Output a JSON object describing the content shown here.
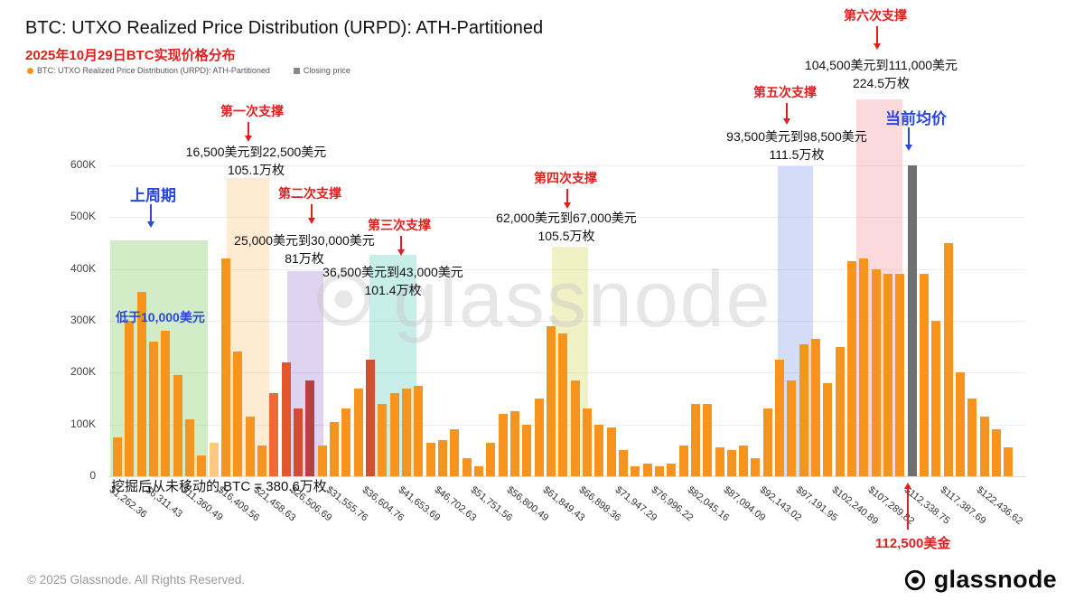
{
  "header": {
    "title": "BTC: UTXO Realized Price Distribution (URPD): ATH-Partitioned",
    "subtitle": "2025年10月29日BTC实现价格分布",
    "legend": {
      "series": "BTC: UTXO Realized Price Distribution (URPD): ATH-Partitioned",
      "closing": "Closing price"
    }
  },
  "chart_data": {
    "type": "bar",
    "title": "BTC: UTXO Realized Price Distribution (URPD): ATH-Partitioned",
    "ylim": [
      0,
      600000
    ],
    "grid": true,
    "legend_position": "top-left",
    "unit": "BTC supply per price bucket (K)",
    "start_price_usd": 1262.36,
    "bucket_usd": 1683,
    "yticks": [
      {
        "v": 0,
        "label": "0"
      },
      {
        "v": 100,
        "label": "100K"
      },
      {
        "v": 200,
        "label": "200K"
      },
      {
        "v": 300,
        "label": "300K"
      },
      {
        "v": 400,
        "label": "400K"
      },
      {
        "v": 500,
        "label": "500K"
      },
      {
        "v": 600,
        "label": "600K"
      }
    ],
    "x_tick_labels": [
      "$1,262.36",
      "$6,311.43",
      "$11,360.49",
      "$16,409.56",
      "$21,458.63",
      "$26,506.69",
      "$31,555.76",
      "$36,604.76",
      "$41,653.69",
      "$46,702.63",
      "$51,751.56",
      "$56,800.49",
      "$61,849.43",
      "$66,898.36",
      "$71,947.29",
      "$76,996.22",
      "$82,045.16",
      "$87,094.09",
      "$92,143.02",
      "$97,191.95",
      "$102,240.89",
      "$107,289.82",
      "$112,338.75",
      "$117,387.69",
      "$122,436.62"
    ],
    "values_k": [
      75,
      300,
      355,
      260,
      280,
      195,
      110,
      40,
      65,
      420,
      240,
      115,
      60,
      160,
      220,
      130,
      185,
      60,
      105,
      130,
      170,
      225,
      140,
      160,
      170,
      175,
      65,
      70,
      90,
      35,
      20,
      65,
      120,
      125,
      100,
      150,
      290,
      275,
      185,
      130,
      100,
      95,
      50,
      20,
      25,
      20,
      25,
      60,
      140,
      140,
      55,
      50,
      60,
      35,
      130,
      225,
      185,
      255,
      265,
      180,
      250,
      415,
      420,
      400,
      390,
      390,
      600,
      390,
      300,
      450,
      200,
      150,
      115,
      90,
      55
    ],
    "color_default": "#f7941e",
    "color_overrides": {
      "8": "#fdc87f",
      "13": "#ee6a2f",
      "14": "#e2572c",
      "15": "#d84b2e",
      "16": "#b5423c",
      "21": "#d0512f",
      "66": "#707070"
    },
    "closing_price_index": 66,
    "bands": [
      {
        "name": "prev-cycle",
        "from_usd": 250,
        "to_usd": 13900,
        "top_k": 455,
        "color": "rgba(140,205,110,0.38)"
      },
      {
        "name": "support-1",
        "from_usd": 16500,
        "to_usd": 22500,
        "top_k": 575,
        "color": "rgba(250,166,52,0.22)"
      },
      {
        "name": "support-2",
        "from_usd": 25000,
        "to_usd": 30000,
        "top_k": 396,
        "color": "rgba(150,108,210,0.30)"
      },
      {
        "name": "support-3",
        "from_usd": 36500,
        "to_usd": 43000,
        "top_k": 428,
        "color": "rgba(72,200,185,0.30)"
      },
      {
        "name": "support-4",
        "from_usd": 62000,
        "to_usd": 67000,
        "top_k": 443,
        "color": "rgba(215,218,100,0.38)"
      },
      {
        "name": "support-5",
        "from_usd": 93500,
        "to_usd": 98500,
        "top_k": 598,
        "color": "rgba(128,158,235,0.35)"
      },
      {
        "name": "support-6",
        "from_usd": 104500,
        "to_usd": 111000,
        "top_k": 727,
        "color": "rgba(242,128,138,0.30)"
      }
    ]
  },
  "annotations": {
    "prev_cycle": "上周期",
    "below_10k": "低于10,000美元",
    "current_avg": "当前均价",
    "current_price": "112,500美金",
    "mined_never_moved": "挖掘后从未移动的 BTC = 380.6万枚",
    "supports": [
      {
        "title": "第一次支撑",
        "range": "16,500美元到22,500美元",
        "amount": "105.1万枚"
      },
      {
        "title": "第二次支撑",
        "range": "25,000美元到30,000美元",
        "amount": "81万枚"
      },
      {
        "title": "第三次支撑",
        "range": "36,500美元到43,000美元",
        "amount": "101.4万枚"
      },
      {
        "title": "第四次支撑",
        "range": "62,000美元到67,000美元",
        "amount": "105.5万枚"
      },
      {
        "title": "第五次支撑",
        "range": "93,500美元到98,500美元",
        "amount": "111.5万枚"
      },
      {
        "title": "第六次支撑",
        "range": "104,500美元到111,000美元",
        "amount": "224.5万枚"
      }
    ]
  },
  "watermark": {
    "text": "glassnode"
  },
  "footer": {
    "copyright": "© 2025 Glassnode. All Rights Reserved.",
    "brand": "glassnode"
  }
}
